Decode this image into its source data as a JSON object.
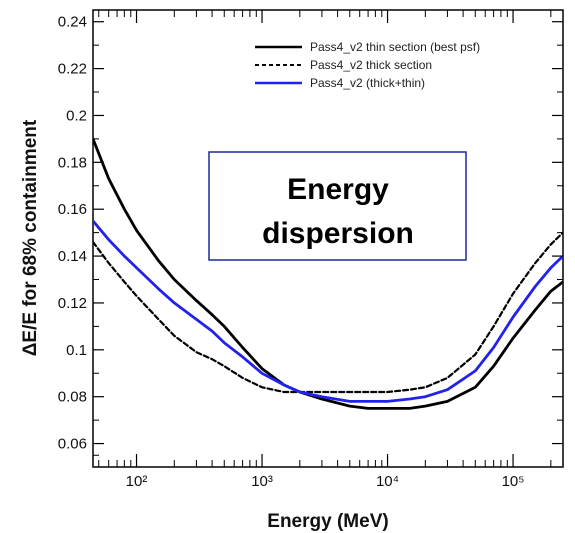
{
  "chart_data": {
    "type": "line",
    "xlabel": "Energy (MeV)",
    "ylabel": "ΔE/E for 68% containment",
    "xscale": "log",
    "xlim": [
      45,
      250000
    ],
    "ylim": [
      0.05,
      0.245
    ],
    "xtick_labels": [
      {
        "value": 100,
        "label": "10²"
      },
      {
        "value": 1000,
        "label": "10³"
      },
      {
        "value": 10000,
        "label": "10⁴"
      },
      {
        "value": 100000,
        "label": "10⁵"
      }
    ],
    "yticks": [
      0.06,
      0.08,
      0.1,
      0.12,
      0.14,
      0.16,
      0.18,
      0.2,
      0.22,
      0.24
    ],
    "ytick_labels": [
      "0.06",
      "0.08",
      "0.1",
      "0.12",
      "0.14",
      "0.16",
      "0.18",
      "0.2",
      "0.22",
      "0.24"
    ],
    "legend_position": "top-right",
    "annotation": {
      "lines": [
        "Energy",
        "dispersion"
      ]
    },
    "series": [
      {
        "name": "Pass4_v2 thin section (best psf)",
        "color": "#000000",
        "style": "solid",
        "x": [
          45,
          60,
          80,
          100,
          150,
          200,
          300,
          400,
          500,
          700,
          1000,
          1500,
          2000,
          3000,
          5000,
          7000,
          10000,
          15000,
          20000,
          30000,
          50000,
          70000,
          100000,
          150000,
          200000,
          250000
        ],
        "y": [
          0.19,
          0.173,
          0.16,
          0.151,
          0.138,
          0.13,
          0.121,
          0.115,
          0.11,
          0.101,
          0.092,
          0.085,
          0.082,
          0.079,
          0.076,
          0.075,
          0.075,
          0.075,
          0.076,
          0.078,
          0.084,
          0.093,
          0.105,
          0.117,
          0.125,
          0.129
        ]
      },
      {
        "name": "Pass4_v2 thick section",
        "color": "#000000",
        "style": "dashed",
        "x": [
          45,
          60,
          80,
          100,
          150,
          200,
          300,
          400,
          500,
          700,
          1000,
          1500,
          2000,
          3000,
          5000,
          7000,
          10000,
          15000,
          20000,
          30000,
          50000,
          70000,
          100000,
          150000,
          200000,
          250000
        ],
        "y": [
          0.146,
          0.137,
          0.129,
          0.123,
          0.113,
          0.106,
          0.099,
          0.096,
          0.093,
          0.088,
          0.084,
          0.082,
          0.082,
          0.082,
          0.082,
          0.082,
          0.082,
          0.083,
          0.084,
          0.088,
          0.098,
          0.11,
          0.124,
          0.137,
          0.145,
          0.15
        ]
      },
      {
        "name": "Pass4_v2 (thick+thin)",
        "color": "#2222ee",
        "style": "solid",
        "x": [
          45,
          60,
          80,
          100,
          150,
          200,
          300,
          400,
          500,
          700,
          1000,
          1500,
          2000,
          3000,
          5000,
          7000,
          10000,
          15000,
          20000,
          30000,
          50000,
          70000,
          100000,
          150000,
          200000,
          250000
        ],
        "y": [
          0.155,
          0.147,
          0.14,
          0.135,
          0.126,
          0.12,
          0.113,
          0.108,
          0.103,
          0.097,
          0.09,
          0.085,
          0.082,
          0.08,
          0.078,
          0.078,
          0.078,
          0.079,
          0.08,
          0.083,
          0.091,
          0.101,
          0.114,
          0.127,
          0.135,
          0.14
        ]
      }
    ]
  }
}
